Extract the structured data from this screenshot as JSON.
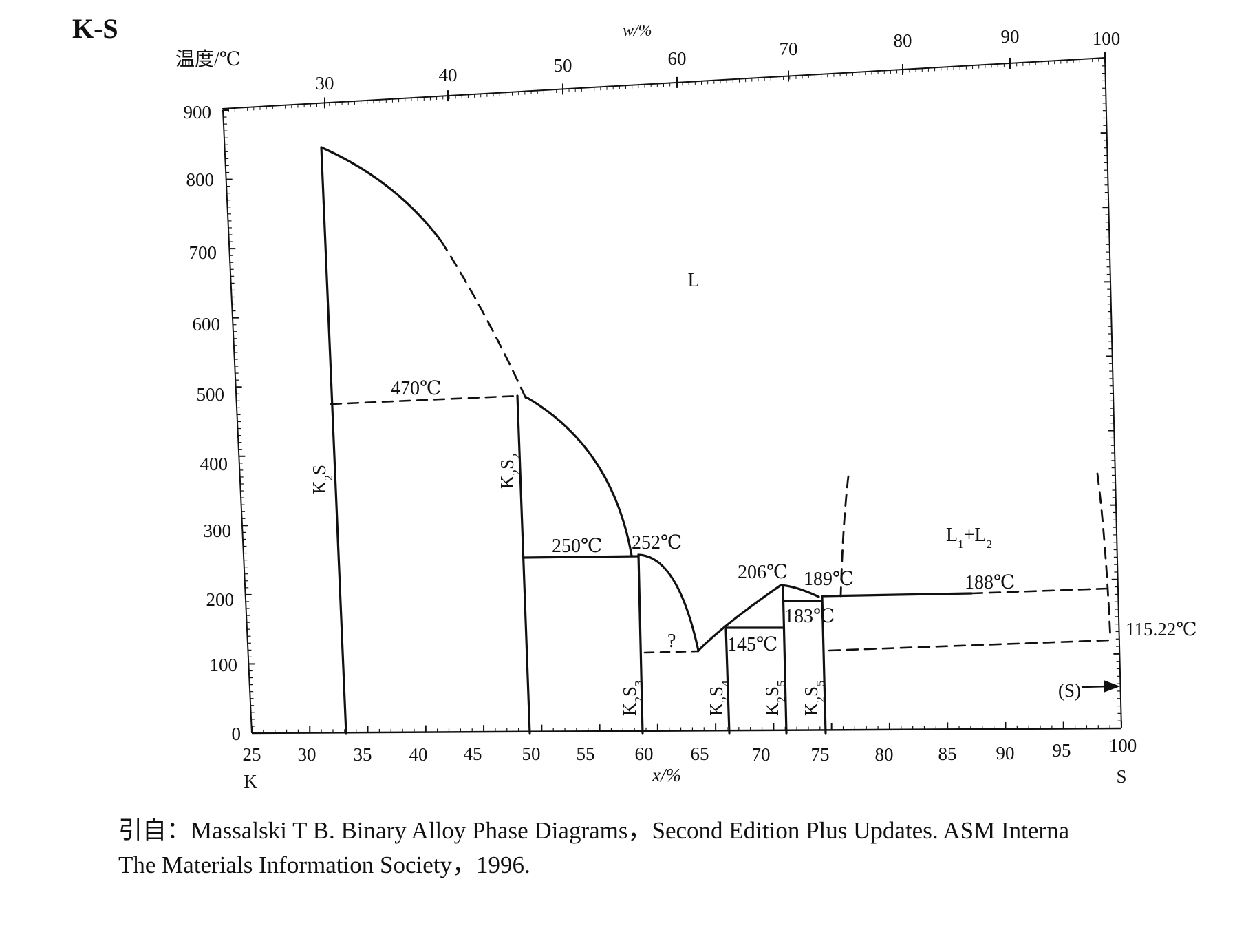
{
  "title": "K-S",
  "axes": {
    "left_label": "温度/℃",
    "top_label": "w/%",
    "bottom_label": "x/%",
    "left_ticks": [
      "0",
      "100",
      "200",
      "300",
      "400",
      "500",
      "600",
      "700",
      "800",
      "900"
    ],
    "bottom_ticks": [
      "25",
      "30",
      "35",
      "40",
      "45",
      "50",
      "55",
      "60",
      "65",
      "70",
      "75",
      "80",
      "85",
      "90",
      "95",
      "100"
    ],
    "top_ticks": [
      "30",
      "40",
      "50",
      "60",
      "70",
      "80",
      "90",
      "100"
    ],
    "left_element": "K",
    "right_element": "S"
  },
  "region_labels": {
    "liquid": "L",
    "two_liquids": "L1+L2"
  },
  "temperature_labels": {
    "t470": "470℃",
    "t250": "250℃",
    "t252": "252℃",
    "t206": "206℃",
    "t189": "189℃",
    "t188": "188℃",
    "t183": "183℃",
    "t145": "145℃",
    "t115": "115.22℃",
    "question": "?"
  },
  "compound_labels": {
    "k2s": "K2S",
    "k2s2": "K2S2",
    "k2s3": "K2S3",
    "k2s4": "K2S4",
    "k2s5a": "K2S5",
    "k2s5b": "K2S5"
  },
  "sulfur_label": "(S)",
  "caption": {
    "line1": "引自：Massalski T B.  Binary Alloy Phase Diagrams，Second Edition Plus Updates.  ASM Interna",
    "line2": "The Materials Information Society，1996."
  }
}
